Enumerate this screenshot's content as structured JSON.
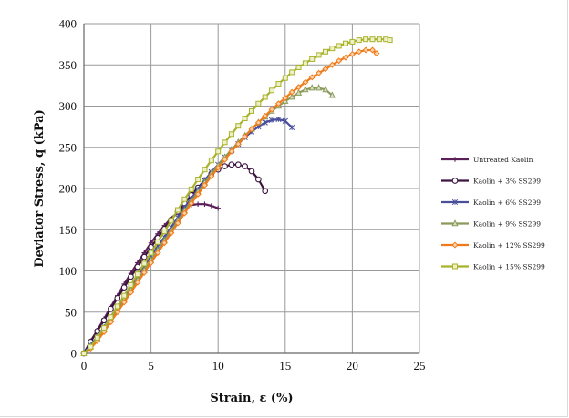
{
  "chart_data": {
    "type": "line",
    "xlabel": "Strain, ε (%)",
    "ylabel": "Deviator Stress, q (kPa)",
    "xlim": [
      0,
      25
    ],
    "ylim": [
      0,
      400
    ],
    "xticks": [
      0,
      5,
      10,
      15,
      20,
      25
    ],
    "yticks": [
      0,
      50,
      100,
      150,
      200,
      250,
      300,
      350,
      400
    ],
    "grid": true,
    "legend_position": "right",
    "series": [
      {
        "name": "Untreated Kaolin",
        "color": "#5b1f5a",
        "marker": "plus",
        "x": [
          0,
          0.5,
          1,
          1.5,
          2,
          2.5,
          3,
          3.5,
          4,
          4.5,
          5,
          5.5,
          6,
          6.5,
          7,
          7.5,
          8,
          8.5,
          9,
          9.5,
          10
        ],
        "y": [
          0,
          15,
          28,
          42,
          56,
          70,
          84,
          97,
          110,
          122,
          134,
          145,
          155,
          164,
          171,
          177,
          180,
          181,
          181,
          179,
          176
        ]
      },
      {
        "name": "Kaolin + 3% SS299",
        "color": "#3c1540",
        "marker": "circle",
        "x": [
          0,
          0.5,
          1,
          1.5,
          2,
          2.5,
          3,
          3.5,
          4,
          4.5,
          5,
          5.5,
          6,
          6.5,
          7,
          7.5,
          8,
          8.5,
          9,
          9.5,
          10,
          10.5,
          11,
          11.5,
          12,
          12.5,
          13,
          13.5
        ],
        "y": [
          0,
          14,
          27,
          40,
          54,
          67,
          80,
          93,
          105,
          117,
          129,
          140,
          151,
          162,
          172,
          182,
          192,
          201,
          210,
          218,
          223,
          227,
          229,
          229,
          227,
          221,
          211,
          197
        ]
      },
      {
        "name": "Kaolin + 6% SS299",
        "color": "#4a4f9c",
        "marker": "star",
        "x": [
          0,
          0.5,
          1,
          1.5,
          2,
          2.5,
          3,
          3.5,
          4,
          4.5,
          5,
          5.5,
          6,
          6.5,
          7,
          7.5,
          8,
          8.5,
          9,
          9.5,
          10,
          10.5,
          11,
          11.5,
          12,
          12.5,
          13,
          13.5,
          14,
          14.5,
          15,
          15.5
        ],
        "y": [
          0,
          10,
          20,
          32,
          44,
          57,
          69,
          81,
          94,
          106,
          118,
          130,
          141,
          153,
          165,
          177,
          188,
          199,
          210,
          220,
          229,
          238,
          246,
          254,
          262,
          269,
          275,
          280,
          283,
          284,
          282,
          274
        ]
      },
      {
        "name": "Kaolin + 9% SS299",
        "color": "#8a9a5b",
        "marker": "triangle",
        "x": [
          0,
          0.5,
          1,
          1.5,
          2,
          2.5,
          3,
          3.5,
          4,
          4.5,
          5,
          5.5,
          6,
          6.5,
          7,
          7.5,
          8,
          8.5,
          9,
          9.5,
          10,
          10.5,
          11,
          11.5,
          12,
          12.5,
          13,
          13.5,
          14,
          14.5,
          15,
          15.5,
          16,
          16.5,
          17,
          17.5,
          18,
          18.5
        ],
        "y": [
          0,
          8,
          18,
          29,
          41,
          53,
          65,
          77,
          89,
          101,
          113,
          125,
          137,
          149,
          161,
          173,
          185,
          196,
          207,
          218,
          228,
          238,
          247,
          256,
          264,
          272,
          280,
          287,
          294,
          300,
          306,
          311,
          316,
          320,
          322,
          322,
          320,
          313
        ]
      },
      {
        "name": "Kaolin + 12% SS299",
        "color": "#f07a1a",
        "marker": "diamond",
        "x": [
          0,
          0.5,
          1,
          1.5,
          2,
          2.5,
          3,
          3.5,
          4,
          4.5,
          5,
          5.5,
          6,
          6.5,
          7,
          7.5,
          8,
          8.5,
          9,
          9.5,
          10,
          10.5,
          11,
          11.5,
          12,
          12.5,
          13,
          13.5,
          14,
          14.5,
          15,
          15.5,
          16,
          16.5,
          17,
          17.5,
          18,
          18.5,
          19,
          19.5,
          20,
          20.5,
          21,
          21.5,
          21.8
        ],
        "y": [
          0,
          6,
          15,
          26,
          38,
          50,
          62,
          74,
          86,
          98,
          110,
          122,
          134,
          146,
          158,
          170,
          182,
          193,
          204,
          215,
          225,
          235,
          245,
          254,
          263,
          272,
          280,
          288,
          296,
          303,
          310,
          317,
          323,
          329,
          335,
          340,
          345,
          350,
          355,
          359,
          363,
          366,
          368,
          368,
          364
        ]
      },
      {
        "name": "Kaolin + 15% SS299",
        "color": "#a8b22a",
        "marker": "square",
        "x": [
          0,
          0.5,
          1,
          1.5,
          2,
          2.5,
          3,
          3.5,
          4,
          4.5,
          5,
          5.5,
          6,
          6.5,
          7,
          7.5,
          8,
          8.5,
          9,
          9.5,
          10,
          10.5,
          11,
          11.5,
          12,
          12.5,
          13,
          13.5,
          14,
          14.5,
          15,
          15.5,
          16,
          16.5,
          17,
          17.5,
          18,
          18.5,
          19,
          19.5,
          20,
          20.5,
          21,
          21.5,
          22,
          22.5,
          22.8
        ],
        "y": [
          0,
          8,
          19,
          31,
          44,
          57,
          70,
          83,
          96,
          109,
          122,
          135,
          148,
          161,
          174,
          187,
          199,
          211,
          223,
          234,
          245,
          256,
          266,
          276,
          285,
          294,
          303,
          311,
          319,
          327,
          334,
          341,
          347,
          352,
          357,
          362,
          366,
          370,
          373,
          376,
          378,
          380,
          381,
          381,
          381,
          381,
          380
        ]
      }
    ]
  }
}
